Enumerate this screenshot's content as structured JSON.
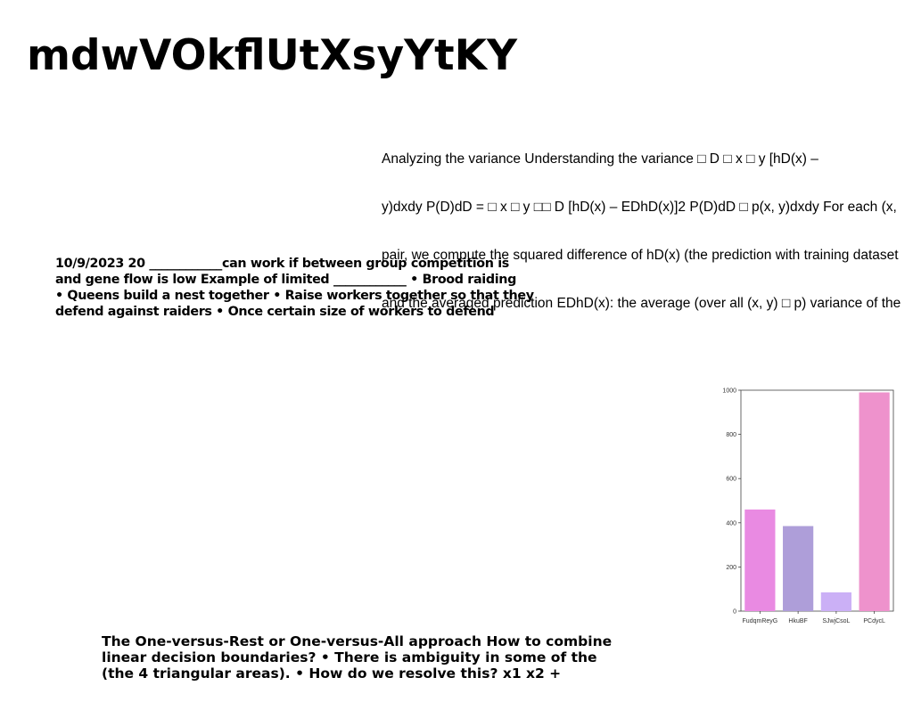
{
  "page": {
    "title": "mdwVOkflUtXsyYtKY"
  },
  "variance_block": {
    "lines": [
      "Analyzing the variance Understanding the variance □ D □ x □ y [hD(x) –",
      "y)dxdy P(D)dD = □ x □ y □□ D [hD(x) – EDhD(x)]2 P(D)dD □ p(x, y)dxdy For each (x,",
      "pair, we compute the squared difference of hD(x) (the prediction with training dataset",
      "and the averaged prediction EDhD(x): the average (over all (x, y) □ p) variance of the"
    ]
  },
  "bio_block": {
    "lines": [
      "10/9/2023 20 ____________can work if between group competition is",
      "and gene flow is low Example of limited ____________ • Brood raiding",
      "• Queens build a nest together • Raise workers together so that they",
      "defend against raiders • Once certain size of workers to defend"
    ]
  },
  "ovr_block": {
    "lines": [
      "The One-versus-Rest or One-versus-All approach How to combine",
      "linear decision boundaries? • There is ambiguity in some of the",
      "(the 4 triangular areas). • How do we resolve this? x1 x2 +"
    ]
  },
  "chart_data": {
    "type": "bar",
    "categories": [
      "FudqmReyG",
      "HkuBF",
      "SJwjCsoL",
      "PCdycL"
    ],
    "values": [
      460,
      385,
      85,
      990
    ],
    "colors": [
      "#e98ae2",
      "#ae9ed9",
      "#cbb0f6",
      "#ee92cc"
    ],
    "ylim": [
      0,
      1000
    ],
    "yticks": [
      0,
      200,
      400,
      600,
      800,
      1000
    ],
    "title": "",
    "xlabel": "",
    "ylabel": "",
    "grid": false
  }
}
